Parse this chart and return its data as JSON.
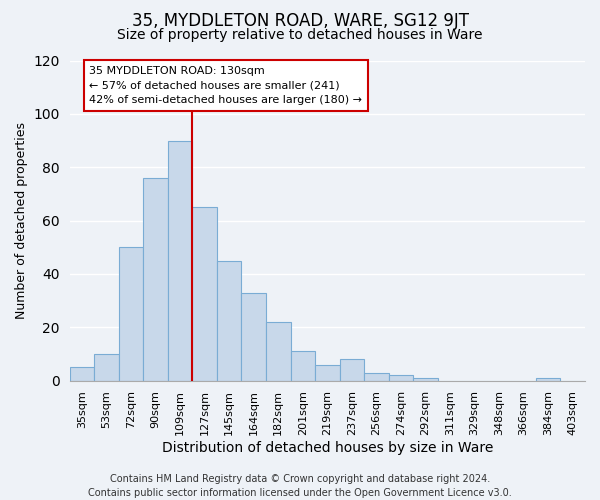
{
  "title": "35, MYDDLETON ROAD, WARE, SG12 9JT",
  "subtitle": "Size of property relative to detached houses in Ware",
  "xlabel": "Distribution of detached houses by size in Ware",
  "ylabel": "Number of detached properties",
  "footer_line1": "Contains HM Land Registry data © Crown copyright and database right 2024.",
  "footer_line2": "Contains public sector information licensed under the Open Government Licence v3.0.",
  "bar_labels": [
    "35sqm",
    "53sqm",
    "72sqm",
    "90sqm",
    "109sqm",
    "127sqm",
    "145sqm",
    "164sqm",
    "182sqm",
    "201sqm",
    "219sqm",
    "237sqm",
    "256sqm",
    "274sqm",
    "292sqm",
    "311sqm",
    "329sqm",
    "348sqm",
    "366sqm",
    "384sqm",
    "403sqm"
  ],
  "bar_heights": [
    5,
    10,
    50,
    76,
    90,
    65,
    45,
    33,
    22,
    11,
    6,
    8,
    3,
    2,
    1,
    0,
    0,
    0,
    0,
    1,
    0
  ],
  "bar_color": "#c8d8ea",
  "bar_edge_color": "#7aacd4",
  "vline_color": "#cc0000",
  "annotation_title": "35 MYDDLETON ROAD: 130sqm",
  "annotation_line1": "← 57% of detached houses are smaller (241)",
  "annotation_line2": "42% of semi-detached houses are larger (180) →",
  "annotation_box_color": "#ffffff",
  "annotation_box_edge": "#cc0000",
  "ylim": [
    0,
    120
  ],
  "yticks": [
    0,
    20,
    40,
    60,
    80,
    100,
    120
  ],
  "background_color": "#eef2f7",
  "plot_background": "#eef2f7",
  "grid_color": "#ffffff",
  "title_fontsize": 12,
  "subtitle_fontsize": 10,
  "ylabel_fontsize": 9,
  "xlabel_fontsize": 10,
  "tick_fontsize": 8,
  "footer_fontsize": 7
}
